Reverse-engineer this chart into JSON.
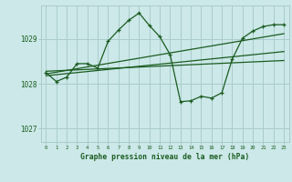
{
  "background_color": "#cce8e8",
  "grid_color": "#aacccc",
  "line_color": "#1a5c20",
  "title": "Graphe pression niveau de la mer (hPa)",
  "xlim": [
    -0.5,
    23.5
  ],
  "ylim": [
    1026.7,
    1029.75
  ],
  "yticks": [
    1027,
    1028,
    1029
  ],
  "xticks": [
    0,
    1,
    2,
    3,
    4,
    5,
    6,
    7,
    8,
    9,
    10,
    11,
    12,
    13,
    14,
    15,
    16,
    17,
    18,
    19,
    20,
    21,
    22,
    23
  ],
  "series": [
    {
      "x": [
        0,
        1,
        2,
        3,
        4,
        5,
        6,
        7,
        8,
        9,
        10,
        11,
        12,
        13,
        14,
        15,
        16,
        17,
        18,
        19,
        20,
        21,
        22,
        23
      ],
      "y": [
        1028.25,
        1028.05,
        1028.15,
        1028.45,
        1028.45,
        1028.35,
        1028.95,
        1029.2,
        1029.42,
        1029.58,
        1029.3,
        1029.05,
        1028.65,
        1027.6,
        1027.62,
        1027.72,
        1027.68,
        1027.8,
        1028.55,
        1029.02,
        1029.18,
        1029.28,
        1029.32,
        1029.32
      ],
      "has_markers": true
    },
    {
      "x": [
        0,
        23
      ],
      "y": [
        1028.18,
        1028.72
      ],
      "has_markers": false
    },
    {
      "x": [
        0,
        23
      ],
      "y": [
        1028.22,
        1029.12
      ],
      "has_markers": false
    },
    {
      "x": [
        0,
        23
      ],
      "y": [
        1028.28,
        1028.52
      ],
      "has_markers": false
    }
  ]
}
